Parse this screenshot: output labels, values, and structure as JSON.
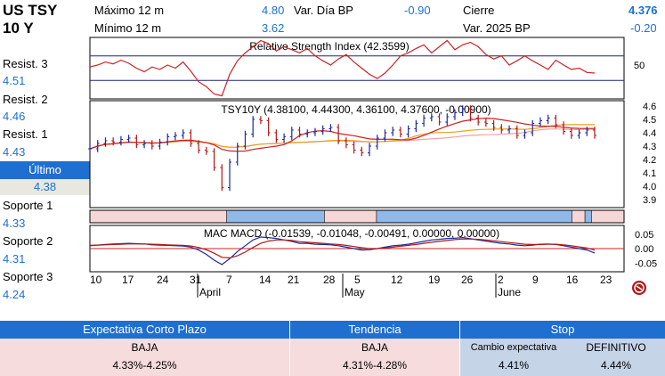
{
  "header": {
    "ticker_line1": "US TSY",
    "ticker_line2": "10 Y",
    "max12_label": "Máximo 12 m",
    "max12_value": "4.80",
    "min12_label": "Mínimo 12 m",
    "min12_value": "3.62",
    "var_dia_label": "Var. Día BP",
    "var_dia_value": "-0.90",
    "cierre_label": "Cierre",
    "cierre_value": "4.376",
    "var_2025_label": "Var. 2025 BP",
    "var_2025_value": "-0.20"
  },
  "levels": {
    "resist3_label": "Resist. 3",
    "resist3_value": "4.51",
    "resist2_label": "Resist. 2",
    "resist2_value": "4.46",
    "resist1_label": "Resist. 1",
    "resist1_value": "4.43",
    "ultimo_label": "Último",
    "ultimo_value": "4.38",
    "soporte1_label": "Soporte 1",
    "soporte1_value": "4.33",
    "soporte2_label": "Soporte 2",
    "soporte2_value": "4.31",
    "soporte3_label": "Soporte 3",
    "soporte3_value": "4.24"
  },
  "chart_data": [
    {
      "type": "line",
      "title": "Relative Strength Index (42.3599)",
      "yticks": [
        "50"
      ],
      "ylim": [
        0,
        100
      ],
      "reference_lines": [
        30,
        70
      ],
      "values": [
        52,
        55,
        60,
        57,
        63,
        58,
        50,
        44,
        52,
        48,
        55,
        50,
        60,
        45,
        28,
        20,
        8,
        5,
        40,
        62,
        75,
        85,
        95,
        90,
        78,
        85,
        80,
        75,
        82,
        70,
        62,
        55,
        65,
        72,
        60,
        50,
        40,
        33,
        42,
        55,
        70,
        75,
        82,
        88,
        75,
        85,
        95,
        80,
        88,
        92,
        85,
        72,
        65,
        70,
        55,
        62,
        70,
        62,
        55,
        48,
        63,
        55,
        48,
        50,
        43,
        42
      ],
      "colors": {
        "line": "#cc2222",
        "reference": "#1a237e"
      }
    },
    {
      "type": "bar",
      "title": "TSY10Y (4.38100, 4.44300, 4.36100, 4.37600, -0.00900)",
      "yticks": [
        "4.6",
        "4.5",
        "4.4",
        "4.3",
        "4.2",
        "4.1",
        "4.0",
        "3.9"
      ],
      "ylim": [
        3.84,
        4.64
      ],
      "close": [
        4.28,
        4.32,
        4.34,
        4.33,
        4.35,
        4.36,
        4.31,
        4.32,
        4.3,
        4.33,
        4.37,
        4.38,
        4.4,
        4.32,
        4.27,
        4.26,
        4.14,
        3.99,
        4.18,
        4.3,
        4.39,
        4.5,
        4.49,
        4.4,
        4.35,
        4.37,
        4.42,
        4.39,
        4.4,
        4.41,
        4.43,
        4.44,
        4.34,
        4.31,
        4.27,
        4.25,
        4.3,
        4.36,
        4.4,
        4.42,
        4.39,
        4.43,
        4.47,
        4.51,
        4.52,
        4.48,
        4.52,
        4.55,
        4.58,
        4.51,
        4.48,
        4.47,
        4.44,
        4.42,
        4.43,
        4.38,
        4.4,
        4.47,
        4.49,
        4.51,
        4.46,
        4.41,
        4.38,
        4.4,
        4.42,
        4.38
      ],
      "colors": {
        "up": "#1a2aa0",
        "down": "#b01818",
        "ma_short": "#cc2222",
        "ma_long": "#e8a020",
        "ma_pink": "#f2a0a0"
      }
    },
    {
      "type": "area",
      "title": "",
      "segments": [
        {
          "state": "down",
          "from": 0,
          "to": 21
        },
        {
          "state": "up",
          "from": 21,
          "to": 36
        },
        {
          "state": "down",
          "from": 36,
          "to": 44
        },
        {
          "state": "up",
          "from": 44,
          "to": 74
        },
        {
          "state": "down",
          "from": 74,
          "to": 76
        },
        {
          "state": "up",
          "from": 76,
          "to": 77
        },
        {
          "state": "down",
          "from": 77,
          "to": 82
        }
      ],
      "colors": {
        "up": "#90b8e8",
        "down": "#f6d6d6"
      }
    },
    {
      "type": "line",
      "title": "MAC MACD (-0.01539, -0.01048, -0.00491, 0.00000, 0.00000)",
      "yticks": [
        "0.05",
        "0.00",
        "-0.05"
      ],
      "ylim": [
        -0.08,
        0.08
      ],
      "series": [
        {
          "values": [
            0.01,
            0.012,
            0.014,
            0.016,
            0.017,
            0.018,
            0.017,
            0.016,
            0.013,
            0.012,
            0.011,
            0.01,
            0.009,
            0.005,
            -0.005,
            -0.02,
            -0.04,
            -0.055,
            -0.035,
            -0.01,
            0.01,
            0.03,
            0.04,
            0.038,
            0.035,
            0.03,
            0.025,
            0.018,
            0.018,
            0.015,
            0.014,
            0.013,
            0.01,
            0.005,
            0.0,
            -0.005,
            -0.004,
            0.0,
            0.005,
            0.01,
            0.012,
            0.015,
            0.02,
            0.025,
            0.03,
            0.032,
            0.035,
            0.036,
            0.038,
            0.034,
            0.03,
            0.026,
            0.022,
            0.018,
            0.016,
            0.012,
            0.01,
            0.012,
            0.015,
            0.016,
            0.014,
            0.01,
            0.005,
            0.0,
            -0.005,
            -0.015
          ],
          "color": "#1a2aa0"
        },
        {
          "values": [
            0.011,
            0.012,
            0.013,
            0.014,
            0.015,
            0.016,
            0.016,
            0.016,
            0.015,
            0.014,
            0.013,
            0.012,
            0.011,
            0.009,
            0.004,
            -0.004,
            -0.016,
            -0.03,
            -0.032,
            -0.025,
            -0.012,
            0.004,
            0.018,
            0.026,
            0.03,
            0.03,
            0.028,
            0.024,
            0.022,
            0.02,
            0.018,
            0.016,
            0.014,
            0.011,
            0.007,
            0.003,
            0.0,
            0.0,
            0.002,
            0.005,
            0.008,
            0.011,
            0.014,
            0.018,
            0.022,
            0.025,
            0.028,
            0.031,
            0.033,
            0.033,
            0.032,
            0.03,
            0.027,
            0.024,
            0.021,
            0.018,
            0.015,
            0.014,
            0.014,
            0.015,
            0.015,
            0.013,
            0.01,
            0.006,
            0.002,
            -0.005
          ],
          "color": "#b01818"
        }
      ],
      "colors": {
        "zero": "#cc2222"
      }
    }
  ],
  "x_axis": {
    "day_labels": [
      "10",
      "17",
      "24",
      "31",
      "7",
      "14",
      "21",
      "28",
      "5",
      "12",
      "19",
      "26",
      "2",
      "9",
      "16",
      "23"
    ],
    "month_labels": [
      "April",
      "May",
      "June"
    ]
  },
  "footer": {
    "col1_header": "Expectativa Corto Plazo",
    "col1_trend": "BAJA",
    "col1_range": "4.33%-4.25%",
    "col2_header": "Tendencia",
    "col2_trend": "BAJA",
    "col2_range": "4.31%-4.28%",
    "col3_header": "Stop",
    "col3_sub1_label": "Cambio expectativa",
    "col3_sub1_value": "4.41%",
    "col3_sub2_label": "DEFINITIVO",
    "col3_sub2_value": "4.44%"
  }
}
